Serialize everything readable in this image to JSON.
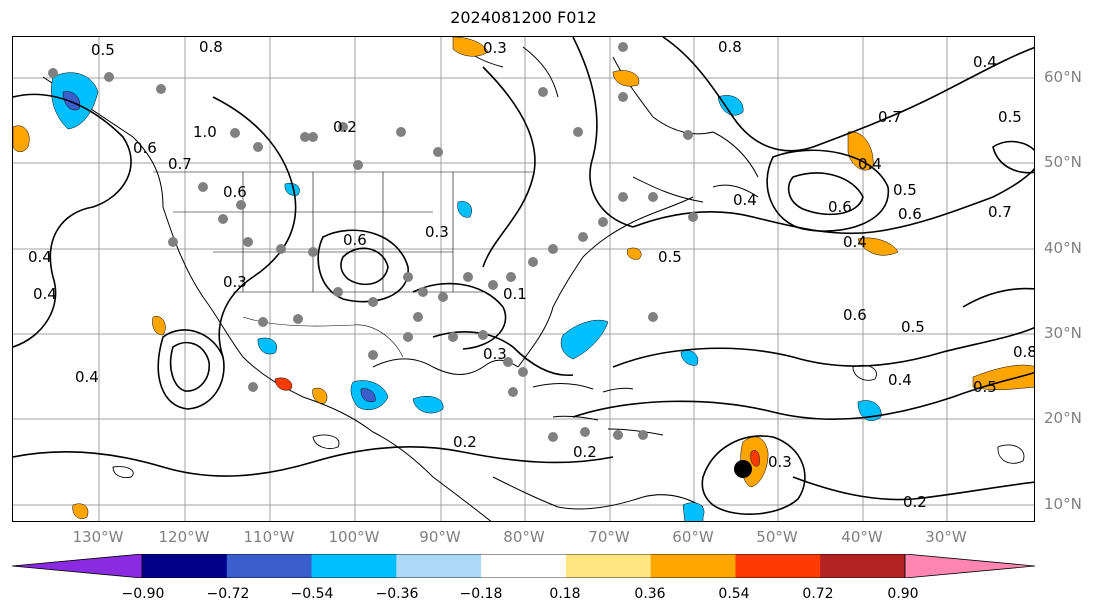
{
  "title": "2024081200 F012",
  "latitude_labels": [
    "60°N",
    "50°N",
    "40°N",
    "30°N",
    "20°N",
    "10°N"
  ],
  "longitude_labels": [
    "130°W",
    "120°W",
    "110°W",
    "100°W",
    "90°W",
    "80°W",
    "70°W",
    "60°W",
    "50°W",
    "40°W",
    "30°W"
  ],
  "contour_labels": [
    "0.5",
    "0.8",
    "0.3",
    "0.6",
    "1.0",
    "0.7",
    "0.6",
    "0.4",
    "0.6",
    "0.3",
    "0.4",
    "0.4",
    "0.2",
    "0.3",
    "0.5",
    "0.8",
    "0.4",
    "0.6",
    "0.7",
    "0.5",
    "0.4",
    "0.2",
    "0.5",
    "0.4",
    "0.6",
    "0.5",
    "0.4",
    "0.3",
    "0.2",
    "0.3",
    "0.2",
    "0.5",
    "0.4",
    "0.7",
    "0.6",
    "0.1",
    "0.8"
  ],
  "colorbar": {
    "ticks": [
      "−0.90",
      "−0.72",
      "−0.54",
      "−0.36",
      "−0.18",
      "0.18",
      "0.36",
      "0.54",
      "0.72",
      "0.90"
    ],
    "under_color": "#8a2be2",
    "over_color": "#ff86b0",
    "segment_colors": [
      "#9932cc",
      "#00008b",
      "#3a5fcd",
      "#00bfff",
      "#add8f6",
      "#ffffff",
      "#ffe680",
      "#ffa500",
      "#ff3a00",
      "#b22222",
      "#ff86b0"
    ]
  },
  "colors": {
    "contour": "#000000",
    "station_marker": "#808080",
    "storm_marker": "#000000",
    "grid": "#a0a0a0",
    "fill_positive_1": "#ffa500",
    "fill_positive_2": "#ff3a00",
    "fill_negative_1": "#00bfff",
    "fill_negative_2": "#3a5fcd"
  }
}
